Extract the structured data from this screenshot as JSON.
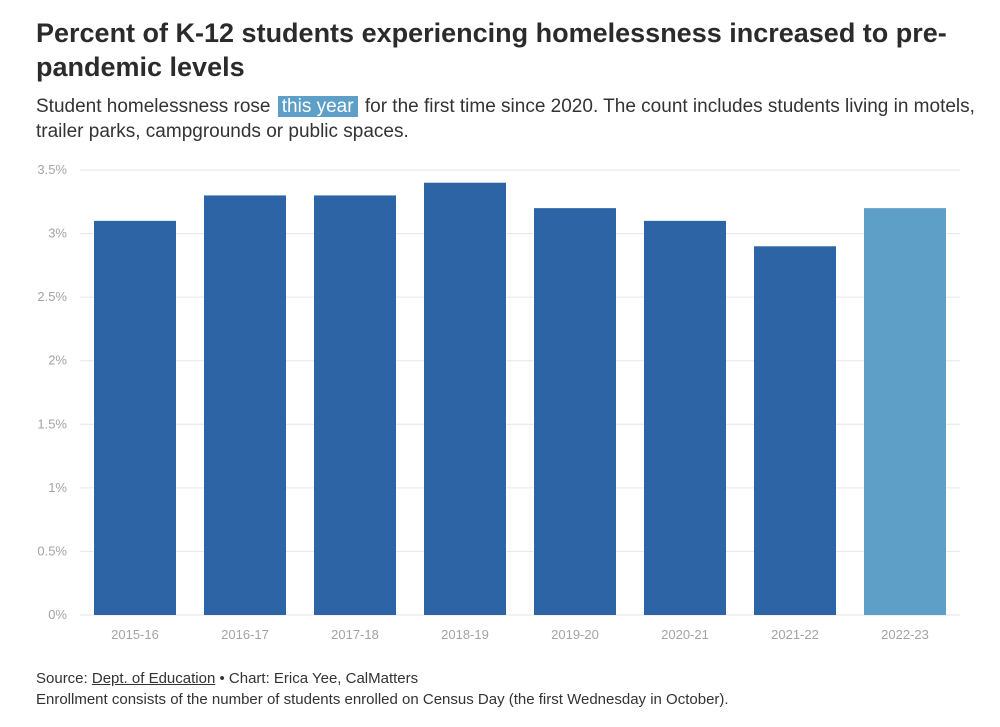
{
  "header": {
    "title": "Percent of K-12 students experiencing homelessness increased to pre-pandemic levels",
    "subtitle_before": "Student homelessness rose",
    "subtitle_highlight": "this year",
    "subtitle_after": "for the first time since 2020. The count includes students living in motels, trailer parks, campgrounds or public spaces."
  },
  "footer": {
    "source_prefix": "Source:",
    "source_link": "Dept. of Education",
    "credit": "• Chart: Erica Yee, CalMatters",
    "note": "Enrollment consists of the number of students enrolled on Census Day (the first Wednesday in October)."
  },
  "colors": {
    "bar": "#2d64a6",
    "highlight_bar": "#5e9fc8",
    "grid": "#e6e6e6",
    "axis_text": "#a3a3a3"
  },
  "chart_data": {
    "type": "bar",
    "categories": [
      "2015-16",
      "2016-17",
      "2017-18",
      "2018-19",
      "2019-20",
      "2020-21",
      "2021-22",
      "2022-23"
    ],
    "values": [
      3.1,
      3.3,
      3.3,
      3.4,
      3.2,
      3.1,
      2.9,
      3.2
    ],
    "highlight_index": 7,
    "ylim": [
      0,
      3.5
    ],
    "yticks": [
      0,
      0.5,
      1,
      1.5,
      2,
      2.5,
      3,
      3.5
    ],
    "ytick_labels": [
      "0%",
      "0.5%",
      "1%",
      "1.5%",
      "2%",
      "2.5%",
      "3%",
      "3.5%"
    ],
    "grid": true,
    "title": "",
    "xlabel": "",
    "ylabel": ""
  }
}
